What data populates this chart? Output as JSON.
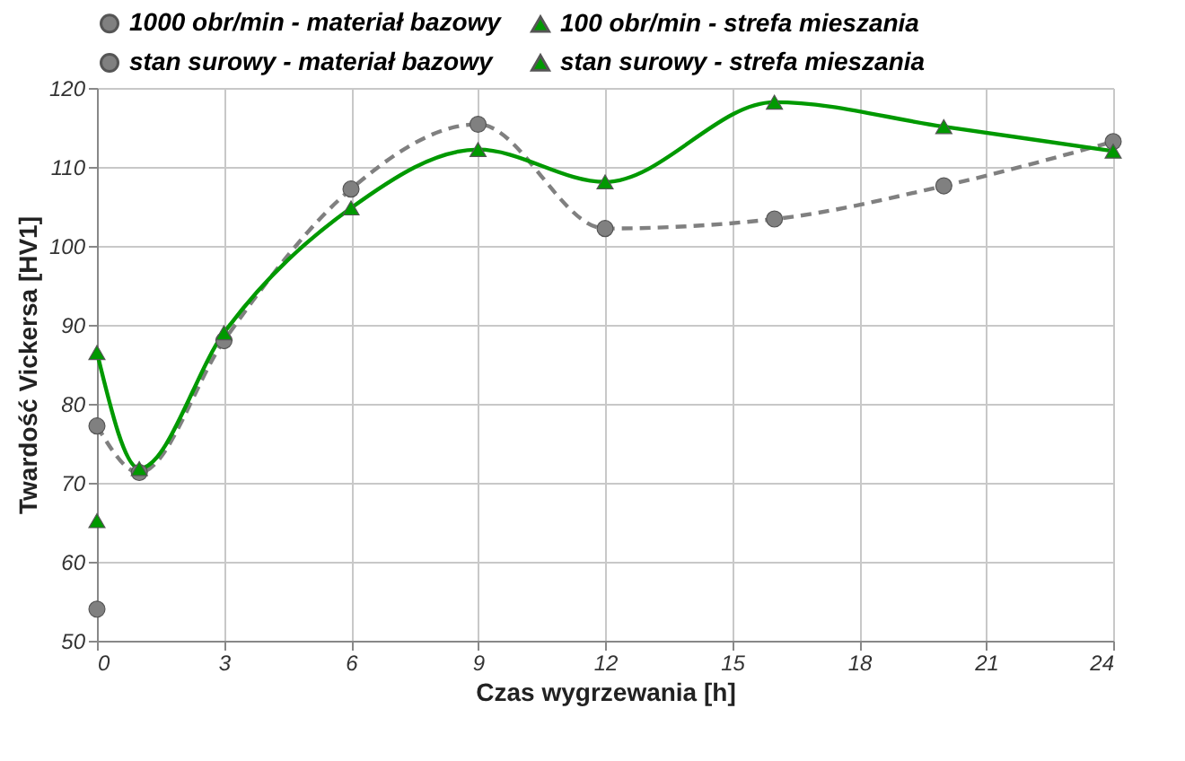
{
  "chart_data": {
    "type": "line",
    "xlabel": "Czas wygrzewania [h]",
    "ylabel": "Twardość Vickersa [HV1]",
    "xlim": [
      0,
      24
    ],
    "xticks": [
      0,
      3,
      6,
      9,
      12,
      15,
      18,
      21,
      24
    ],
    "ylim": [
      50,
      120
    ],
    "yticks": [
      50,
      60,
      70,
      80,
      90,
      100,
      110,
      120
    ],
    "grid": true,
    "legend": "top",
    "series": [
      {
        "name": "1000 obr/min - materiał bazowy",
        "color": "#808080",
        "marker": "circle",
        "line_style": "dashed",
        "x": [
          0,
          1,
          3,
          6,
          9,
          12,
          16,
          20,
          24
        ],
        "values": [
          77.2,
          71.3,
          88,
          107.2,
          115.4,
          102.2,
          103.4,
          107.6,
          113.2
        ]
      },
      {
        "name": "100 obr/min - strefa mieszania",
        "color": "#009900",
        "marker": "triangle",
        "line_style": "solid",
        "x": [
          0,
          1,
          3,
          6,
          9,
          12,
          16,
          20,
          24
        ],
        "values": [
          86.5,
          71.8,
          89,
          104.8,
          112.2,
          108.1,
          118.2,
          115.1,
          112
        ]
      },
      {
        "name": "stan surowy - materiał bazowy",
        "type": "scatter",
        "color": "#808080",
        "marker": "circle",
        "x": [
          0
        ],
        "values": [
          54
        ]
      },
      {
        "name": "stan surowy - strefa mieszania",
        "type": "scatter",
        "color": "#009900",
        "marker": "triangle",
        "x": [
          0
        ],
        "values": [
          65.2
        ]
      }
    ]
  }
}
